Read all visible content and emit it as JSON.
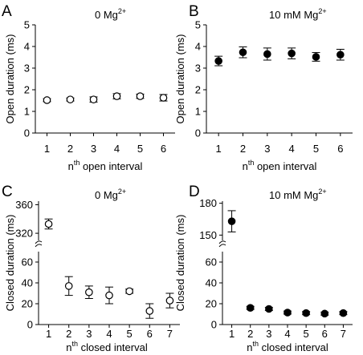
{
  "chart_data": [
    {
      "panel": "A",
      "type": "scatter",
      "condition": {
        "base": "0 Mg",
        "sup": "2+"
      },
      "ylabel": "Open duration (ms)",
      "xlabel": {
        "pre": "n",
        "sup": "th",
        "post": " open interval"
      },
      "x": [
        1,
        2,
        3,
        4,
        5,
        6
      ],
      "y": [
        1.52,
        1.55,
        1.55,
        1.7,
        1.7,
        1.63
      ],
      "err": [
        0.07,
        0.07,
        0.12,
        0.12,
        0.1,
        0.15
      ],
      "xticks": [
        1,
        2,
        3,
        4,
        5,
        6
      ],
      "yticks": [
        0,
        1,
        2,
        3,
        4,
        5
      ],
      "xlim": [
        0.5,
        6.5
      ],
      "ylim": [
        0,
        5
      ],
      "marker": "open-circle",
      "broken_axis": false
    },
    {
      "panel": "B",
      "type": "scatter",
      "condition": {
        "base": "10 mM Mg",
        "sup": "2+"
      },
      "ylabel": "Open duration (ms)",
      "xlabel": {
        "pre": "n",
        "sup": "th",
        "post": " open interval"
      },
      "x": [
        1,
        2,
        3,
        4,
        5,
        6
      ],
      "y": [
        3.33,
        3.73,
        3.65,
        3.68,
        3.52,
        3.62
      ],
      "err": [
        0.22,
        0.25,
        0.28,
        0.25,
        0.2,
        0.25
      ],
      "xticks": [
        1,
        2,
        3,
        4,
        5,
        6
      ],
      "yticks": [
        0,
        1,
        2,
        3,
        4,
        5
      ],
      "xlim": [
        0.5,
        6.5
      ],
      "ylim": [
        0,
        5
      ],
      "marker": "filled-circle",
      "broken_axis": false
    },
    {
      "panel": "C",
      "type": "scatter",
      "condition": {
        "base": "0 Mg",
        "sup": "2+"
      },
      "ylabel": "Closed duration (ms)",
      "xlabel": {
        "pre": "n",
        "sup": "th",
        "post": " closed interval"
      },
      "x": [
        1,
        2,
        3,
        4,
        5,
        6,
        7
      ],
      "y": [
        333,
        37,
        31,
        28,
        32,
        13,
        23
      ],
      "err": [
        7,
        9,
        6,
        8,
        2,
        7,
        7
      ],
      "xticks": [
        1,
        2,
        3,
        4,
        5,
        6,
        7
      ],
      "lower_yticks": [
        0,
        20,
        40,
        60
      ],
      "upper_yticks": [
        320,
        360
      ],
      "lower_ylim": [
        0,
        70
      ],
      "upper_ylim": [
        310,
        365
      ],
      "xlim": [
        0.5,
        7.5
      ],
      "marker": "open-circle",
      "broken_axis": true
    },
    {
      "panel": "D",
      "type": "scatter",
      "condition": {
        "base": "10 mM Mg",
        "sup": "2+"
      },
      "ylabel": "Closed duration (ms)",
      "xlabel": {
        "pre": "n",
        "sup": "th",
        "post": " closed interval"
      },
      "x": [
        1,
        2,
        3,
        4,
        5,
        6,
        7
      ],
      "y": [
        163,
        16,
        15,
        11.5,
        11,
        10.5,
        11
      ],
      "err": [
        10,
        1.5,
        1.5,
        1.5,
        1.5,
        1.5,
        1.5
      ],
      "xticks": [
        1,
        2,
        3,
        4,
        5,
        6,
        7
      ],
      "lower_yticks": [
        0,
        20,
        40,
        60
      ],
      "upper_yticks": [
        150,
        180
      ],
      "lower_ylim": [
        0,
        70
      ],
      "upper_ylim": [
        145,
        182
      ],
      "xlim": [
        0.5,
        7.5
      ],
      "marker": "filled-circle",
      "broken_axis": true
    }
  ]
}
